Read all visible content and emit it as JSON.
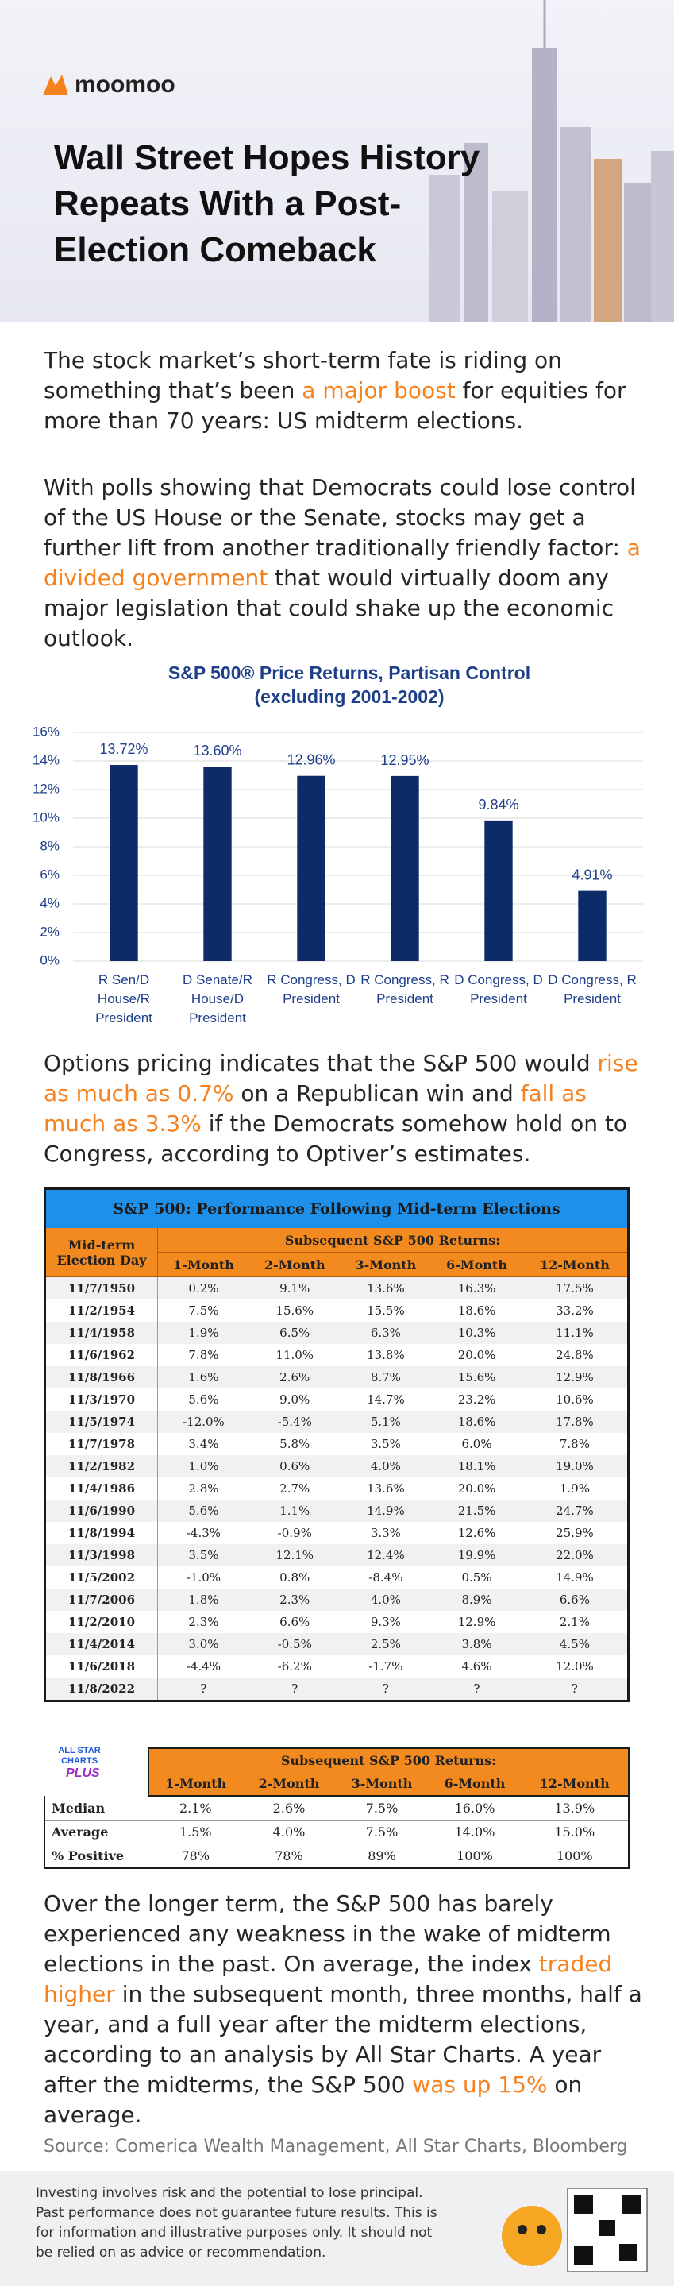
{
  "header": {
    "brand": "moomoo",
    "title": "Wall Street Hopes History Repeats With a Post-Election Comeback"
  },
  "paragraphs": [
    [
      "The stock market’s short-term fate is riding on something that’s been ",
      "a major boost",
      " for equities for more than 70 years: US midterm elections."
    ],
    [
      "With polls showing that Democrats could lose control of the US House or the Senate, stocks may get a further lift from another traditionally friendly factor: ",
      "a divided government",
      " that would virtually doom any major legislation that could shake up the economic outlook."
    ],
    [
      "Options pricing indicates that the S&P 500 would ",
      "rise as much as 0.7%",
      " on a Republican win and ",
      "fall as much as 3.3%",
      " if the Democrats somehow hold on to Congress, according to Optiver’s estimates."
    ],
    [
      "Over the longer term, the S&P 500 has barely experienced any weakness in the wake of midterm elections in the past. On average, the index ",
      "traded higher",
      " in the subsequent month, three months, half a year, and a full year after the midterm elections, according to an analysis by All Star Charts. A year after the midterms, the S&P 500 ",
      "was up 15%",
      " on average."
    ]
  ],
  "chart_data": {
    "type": "bar",
    "title": "S&P 500® Price Returns, Partisan Control",
    "subtitle": "(excluding 2001-2002)",
    "categories": [
      "R Sen/D House/R President",
      "D Senate/R House/D President",
      "R Congress, D President",
      "R Congress, R President",
      "D Congress, D President",
      "D Congress, R President"
    ],
    "values": [
      13.72,
      13.6,
      12.96,
      12.95,
      9.84,
      4.91
    ],
    "value_labels": [
      "13.72%",
      "13.60%",
      "12.96%",
      "12.95%",
      "9.84%",
      "4.91%"
    ],
    "color": "#0d2b69",
    "ylim": [
      0,
      16
    ],
    "yticks": [
      {
        "value": 0,
        "label": "0%"
      },
      {
        "value": 2,
        "label": "2%"
      },
      {
        "value": 4,
        "label": "4%"
      },
      {
        "value": 6,
        "label": "6%"
      },
      {
        "value": 8,
        "label": "8%"
      },
      {
        "value": 10,
        "label": "10%"
      },
      {
        "value": 12,
        "label": "12%"
      },
      {
        "value": 14,
        "label": "14%"
      },
      {
        "value": 16,
        "label": "16%"
      }
    ],
    "grid": true
  },
  "table": {
    "title": "S&P 500: Performance Following Mid-term Elections",
    "first_column": "Mid-term Election Day",
    "group": "Subsequent S&P 500 Returns:",
    "columns": [
      "1-Month",
      "2-Month",
      "3-Month",
      "6-Month",
      "12-Month"
    ],
    "rows": [
      [
        "11/7/1950",
        "0.2%",
        "9.1%",
        "13.6%",
        "16.3%",
        "17.5%"
      ],
      [
        "11/2/1954",
        "7.5%",
        "15.6%",
        "15.5%",
        "18.6%",
        "33.2%"
      ],
      [
        "11/4/1958",
        "1.9%",
        "6.5%",
        "6.3%",
        "10.3%",
        "11.1%"
      ],
      [
        "11/6/1962",
        "7.8%",
        "11.0%",
        "13.8%",
        "20.0%",
        "24.8%"
      ],
      [
        "11/8/1966",
        "1.6%",
        "2.6%",
        "8.7%",
        "15.6%",
        "12.9%"
      ],
      [
        "11/3/1970",
        "5.6%",
        "9.0%",
        "14.7%",
        "23.2%",
        "10.6%"
      ],
      [
        "11/5/1974",
        "-12.0%",
        "-5.4%",
        "5.1%",
        "18.6%",
        "17.8%"
      ],
      [
        "11/7/1978",
        "3.4%",
        "5.8%",
        "3.5%",
        "6.0%",
        "7.8%"
      ],
      [
        "11/2/1982",
        "1.0%",
        "0.6%",
        "4.0%",
        "18.1%",
        "19.0%"
      ],
      [
        "11/4/1986",
        "2.8%",
        "2.7%",
        "13.6%",
        "20.0%",
        "1.9%"
      ],
      [
        "11/6/1990",
        "5.6%",
        "1.1%",
        "14.9%",
        "21.5%",
        "24.7%"
      ],
      [
        "11/8/1994",
        "-4.3%",
        "-0.9%",
        "3.3%",
        "12.6%",
        "25.9%"
      ],
      [
        "11/3/1998",
        "3.5%",
        "12.1%",
        "12.4%",
        "19.9%",
        "22.0%"
      ],
      [
        "11/5/2002",
        "-1.0%",
        "0.8%",
        "-8.4%",
        "0.5%",
        "14.9%"
      ],
      [
        "11/7/2006",
        "1.8%",
        "2.3%",
        "4.0%",
        "8.9%",
        "6.6%"
      ],
      [
        "11/2/2010",
        "2.3%",
        "6.6%",
        "9.3%",
        "12.9%",
        "2.1%"
      ],
      [
        "11/4/2014",
        "3.0%",
        "-0.5%",
        "2.5%",
        "3.8%",
        "4.5%"
      ],
      [
        "11/6/2018",
        "-4.4%",
        "-6.2%",
        "-1.7%",
        "4.6%",
        "12.0%"
      ],
      [
        "11/8/2022",
        "?",
        "?",
        "?",
        "?",
        "?"
      ]
    ]
  },
  "summary_table": {
    "logo": "ALL STAR CHARTS",
    "badge": "PLUS",
    "group": "Subsequent S&P 500 Returns:",
    "columns": [
      "1-Month",
      "2-Month",
      "3-Month",
      "6-Month",
      "12-Month"
    ],
    "rows": [
      [
        "Median",
        "2.1%",
        "2.6%",
        "7.5%",
        "16.0%",
        "13.9%"
      ],
      [
        "Average",
        "1.5%",
        "4.0%",
        "7.5%",
        "14.0%",
        "15.0%"
      ],
      [
        "% Positive",
        "78%",
        "78%",
        "89%",
        "100%",
        "100%"
      ]
    ]
  },
  "source": "Source: Comerica Wealth Management, All Star Charts, Bloomberg",
  "footer": {
    "disclaimer": "Investing involves risk and the potential to lose principal. Past performance does not guarantee future results. This is for information and illustrative purposes only. It should not be relied on as advice or recommendation."
  }
}
